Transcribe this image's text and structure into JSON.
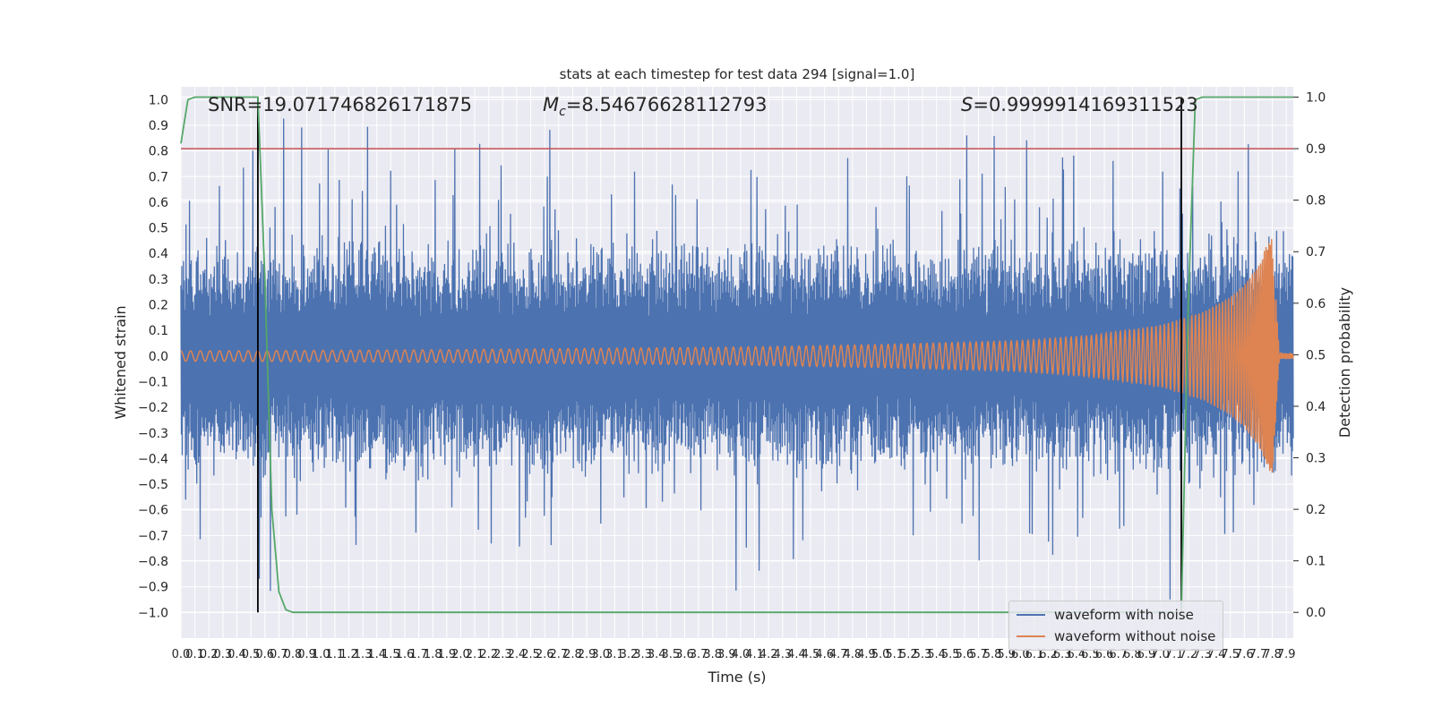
{
  "chart_data": {
    "type": "line",
    "title": "stats at each timestep for test data 294 [signal=1.0]",
    "xlabel": "Time (s)",
    "ylabel_left": "Whitened strain",
    "ylabel_right": "Detection probability",
    "xlim": [
      0.0,
      7.95
    ],
    "ylim_left": [
      -1.1,
      1.05
    ],
    "ylim_right": [
      -0.05,
      1.02
    ],
    "x_ticks": [
      "0.0",
      "0.1",
      "0.2",
      "0.3",
      "0.4",
      "0.5",
      "0.6",
      "0.7",
      "0.8",
      "0.9",
      "1.0",
      "1.1",
      "1.2",
      "1.3",
      "1.4",
      "1.5",
      "1.6",
      "1.7",
      "1.8",
      "1.9",
      "2.0",
      "2.1",
      "2.2",
      "2.3",
      "2.4",
      "2.5",
      "2.6",
      "2.7",
      "2.8",
      "2.9",
      "3.0",
      "3.1",
      "3.2",
      "3.3",
      "3.4",
      "3.5",
      "3.6",
      "3.7",
      "3.8",
      "3.9",
      "4.0",
      "4.1",
      "4.2",
      "4.3",
      "4.4",
      "4.5",
      "4.6",
      "4.7",
      "4.8",
      "4.9",
      "5.0",
      "5.1",
      "5.2",
      "5.3",
      "5.4",
      "5.5",
      "5.6",
      "5.7",
      "5.8",
      "5.9",
      "6.0",
      "6.1",
      "6.2",
      "6.3",
      "6.4",
      "6.5",
      "6.6",
      "6.7",
      "6.8",
      "6.9",
      "7.0",
      "7.1",
      "7.2",
      "7.3",
      "7.4",
      "7.5",
      "7.6",
      "7.7",
      "7.8",
      "7.9"
    ],
    "y_ticks_left": [
      "−1.0",
      "−0.9",
      "−0.8",
      "−0.7",
      "−0.6",
      "−0.5",
      "−0.4",
      "−0.3",
      "−0.2",
      "−0.1",
      "0.0",
      "0.1",
      "0.2",
      "0.3",
      "0.4",
      "0.5",
      "0.6",
      "0.7",
      "0.8",
      "0.9",
      "1.0"
    ],
    "y_ticks_right": [
      "0.0",
      "0.1",
      "0.2",
      "0.3",
      "0.4",
      "0.5",
      "0.6",
      "0.7",
      "0.8",
      "0.9",
      "1.0"
    ],
    "annotations": {
      "snr": "SNR=19.071746826171875",
      "mc_symbol": "M",
      "mc_sub": "c",
      "mc_value": "=8.54676628112793",
      "s_symbol": "S",
      "s_value": "=0.9999914169311523"
    },
    "threshold": {
      "y_right": 0.9,
      "color": "#c44e52"
    },
    "vertical_markers_x": [
      0.55,
      7.15
    ],
    "detection_probability": {
      "x": [
        0.0,
        0.05,
        0.1,
        0.2,
        0.3,
        0.4,
        0.5,
        0.55,
        0.6,
        0.65,
        0.7,
        0.75,
        0.8,
        7.1,
        7.15,
        7.2,
        7.25,
        7.3,
        7.4,
        7.95
      ],
      "y": [
        0.91,
        0.995,
        1.0,
        1.0,
        1.0,
        1.0,
        1.0,
        1.0,
        0.65,
        0.2,
        0.04,
        0.005,
        0.0,
        0.0,
        0.0,
        0.6,
        0.995,
        1.0,
        1.0,
        1.0
      ]
    },
    "noisy_envelope": {
      "typical_max": 0.5,
      "typical_min": -0.5,
      "peak_max": 0.99,
      "peak_min": -1.0
    },
    "clean_waveform": {
      "amplitude": {
        "x": [
          0.0,
          1.0,
          2.0,
          3.0,
          4.0,
          5.0,
          6.0,
          6.5,
          7.0,
          7.3,
          7.5,
          7.6,
          7.7,
          7.75,
          7.8,
          7.85,
          7.95
        ],
        "y": [
          0.02,
          0.022,
          0.025,
          0.03,
          0.035,
          0.045,
          0.06,
          0.08,
          0.12,
          0.17,
          0.23,
          0.28,
          0.35,
          0.42,
          0.47,
          0.01,
          0.01
        ]
      },
      "cycles_before_merger": 180
    },
    "series": [
      {
        "name": "waveform with noise",
        "color": "#4c72b0",
        "axis": "left"
      },
      {
        "name": "waveform without noise",
        "color": "#dd8452",
        "axis": "left"
      },
      {
        "name": "",
        "color": "#55a868",
        "axis": "right"
      }
    ],
    "grid": true,
    "legend_position": "lower-right"
  }
}
